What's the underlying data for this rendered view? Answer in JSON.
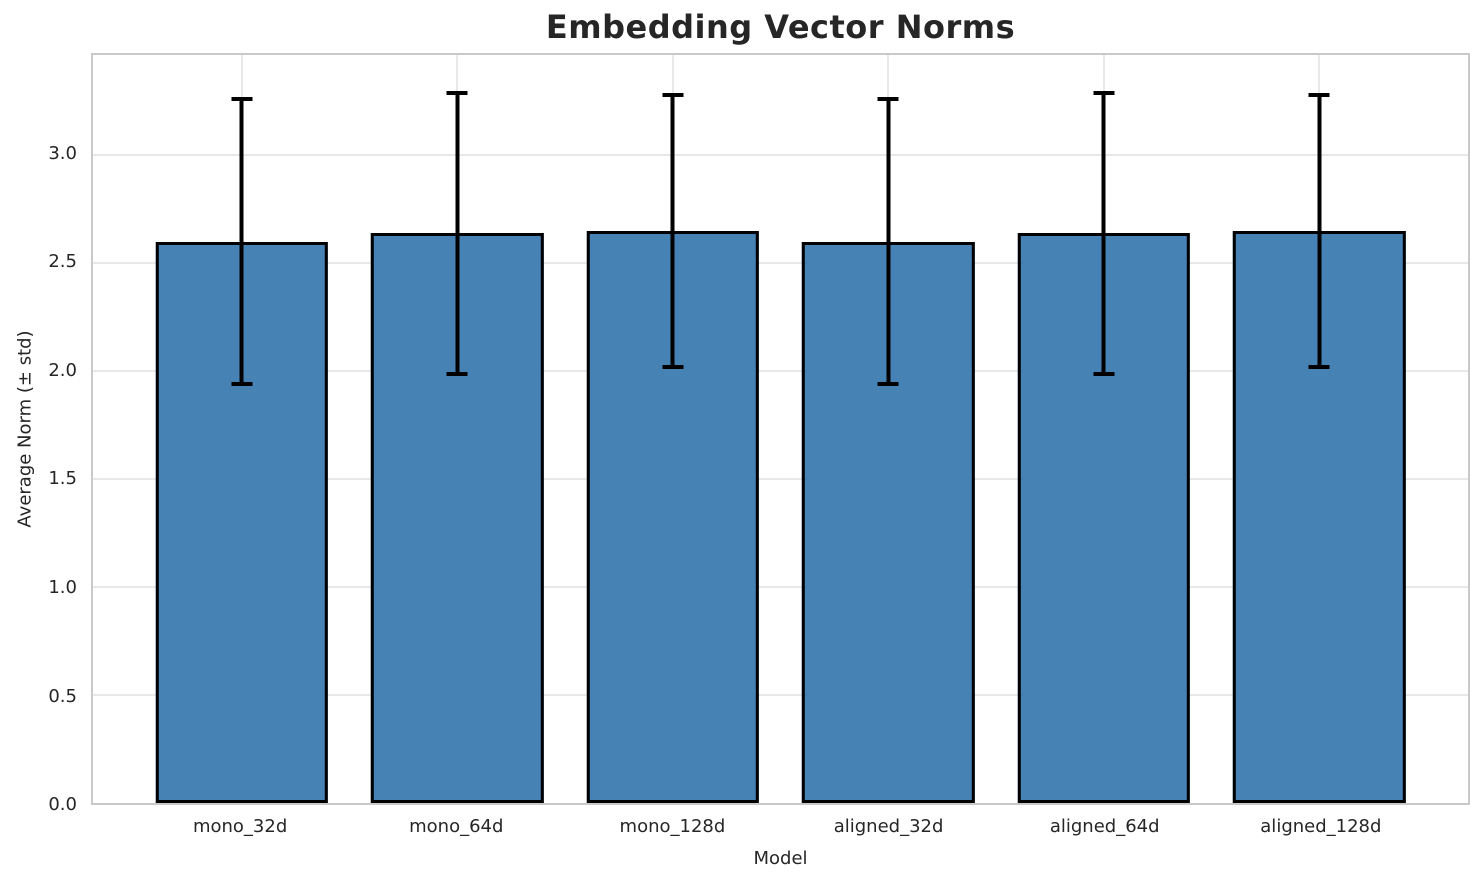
{
  "chart_data": {
    "type": "bar",
    "title": "Embedding Vector Norms",
    "xlabel": "Model",
    "ylabel": "Average Norm (± std)",
    "categories": [
      "mono_32d",
      "mono_64d",
      "mono_128d",
      "aligned_32d",
      "aligned_64d",
      "aligned_128d"
    ],
    "values": [
      2.6,
      2.64,
      2.65,
      2.6,
      2.64,
      2.65
    ],
    "errors": [
      0.67,
      0.66,
      0.64,
      0.67,
      0.66,
      0.64
    ],
    "ytick_labels": [
      "0.0",
      "0.5",
      "1.0",
      "1.5",
      "2.0",
      "2.5",
      "3.0"
    ],
    "yticks": [
      0.0,
      0.5,
      1.0,
      1.5,
      2.0,
      2.5,
      3.0
    ],
    "ylim": [
      0,
      3.465
    ],
    "xlim": [
      -0.69,
      5.69
    ],
    "bar_width": 0.8,
    "grid": true,
    "legend": null,
    "colors": {
      "bar_fill": "#4682b4",
      "bar_edge": "#000000",
      "error": "#000000",
      "grid": "#e8e8e8",
      "spine": "#c9c9c9",
      "text": "#262626"
    }
  }
}
